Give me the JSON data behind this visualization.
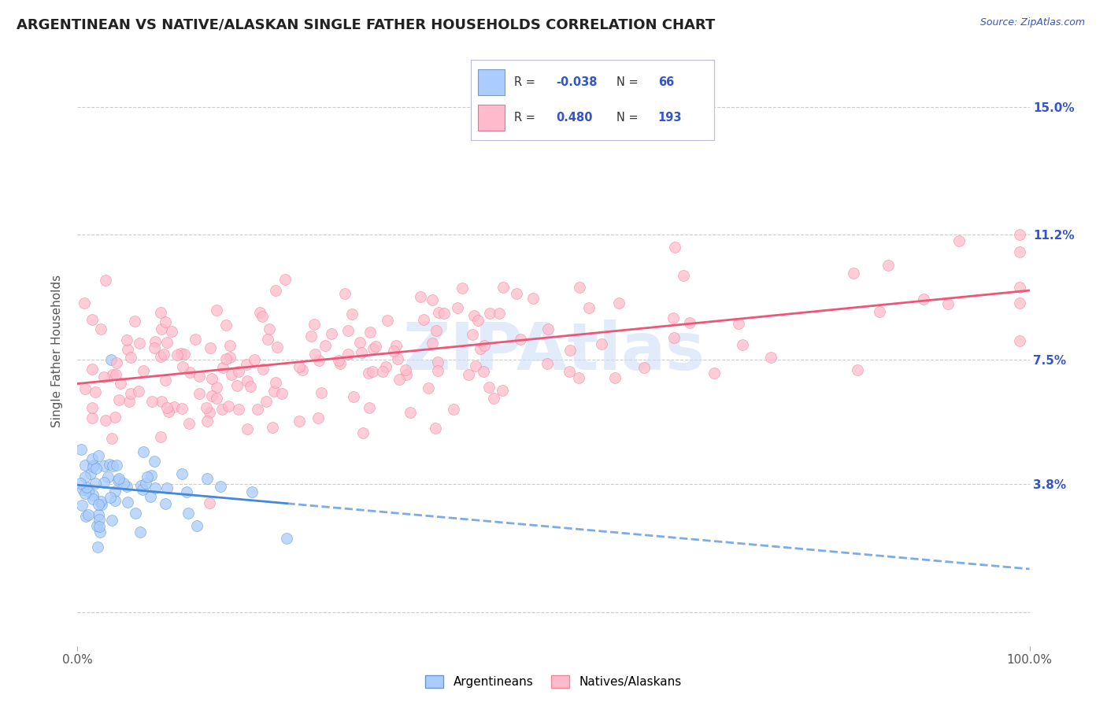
{
  "title": "ARGENTINEAN VS NATIVE/ALASKAN SINGLE FATHER HOUSEHOLDS CORRELATION CHART",
  "source": "Source: ZipAtlas.com",
  "ylabel": "Single Father Households",
  "xlim": [
    0,
    100
  ],
  "ylim": [
    -1.0,
    16.5
  ],
  "yticks": [
    0,
    3.8,
    7.5,
    11.2,
    15.0
  ],
  "ytick_labels": [
    "",
    "3.8%",
    "7.5%",
    "11.2%",
    "15.0%"
  ],
  "xtick_labels": [
    "0.0%",
    "100.0%"
  ],
  "background_color": "#ffffff",
  "grid_color": "#cccccc",
  "series": [
    {
      "name": "Argentineans",
      "R": -0.038,
      "N": 66,
      "dot_color": "#aaccff",
      "edge_color": "#6699cc",
      "trend_color": "#4488dd",
      "trend_solid": false,
      "seed": 10,
      "x_mean": 5.0,
      "x_std": 6.0,
      "x_min": 0.3,
      "x_max": 40.0,
      "y_base": 3.5,
      "y_spread": 1.2
    },
    {
      "name": "Natives/Alaskans",
      "R": 0.48,
      "N": 193,
      "dot_color": "#ffbbcc",
      "edge_color": "#ee8899",
      "trend_color": "#ee5577",
      "trend_solid": true,
      "seed": 20,
      "x_mean": 40.0,
      "x_std": 28.0,
      "x_min": 0.5,
      "x_max": 99.0,
      "y_base": 3.5,
      "y_spread": 2.5
    }
  ],
  "legend_R1": "-0.038",
  "legend_N1": "66",
  "legend_R2": "0.480",
  "legend_N2": "193",
  "legend_color1": "#aaccff",
  "legend_color2": "#ffbbcc",
  "title_fontsize": 13,
  "axis_label_fontsize": 11,
  "tick_fontsize": 11,
  "watermark_color": "#d0dff8",
  "watermark_fontsize": 60
}
